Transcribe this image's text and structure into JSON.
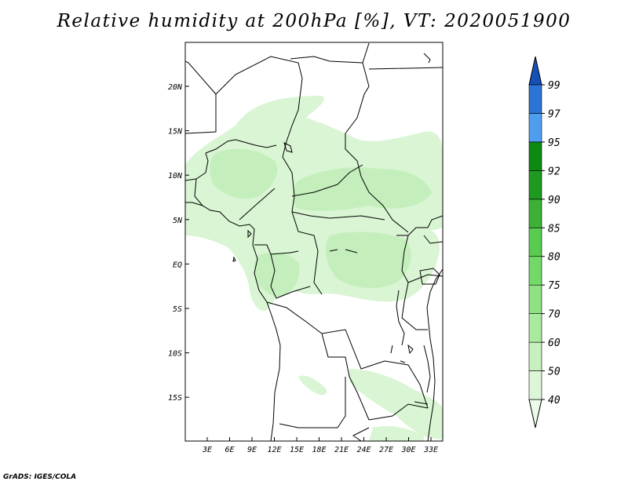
{
  "title": "Relative humidity at 200hPa [%], VT: 2020051900",
  "credit": "GrADS: IGES/COLA",
  "map": {
    "lon_ticks": [
      "3E",
      "6E",
      "9E",
      "12E",
      "15E",
      "18E",
      "21E",
      "24E",
      "27E",
      "30E",
      "33E"
    ],
    "lat_ticks": [
      "20N",
      "15N",
      "10N",
      "5N",
      "EQ",
      "5S",
      "10S",
      "15S"
    ]
  },
  "colorbar": {
    "levels": [
      "40",
      "50",
      "60",
      "70",
      "75",
      "80",
      "85",
      "90",
      "92",
      "95",
      "97",
      "99"
    ],
    "colors": [
      "#ebfbe9",
      "#dcf6d7",
      "#c6f1bf",
      "#a9ea9f",
      "#8ee284",
      "#72d969",
      "#58cc4f",
      "#3cb136",
      "#1d9a1f",
      "#0d8a12",
      "#4e9ef0",
      "#2a74d6",
      "#1550b8"
    ],
    "extend": "both"
  }
}
